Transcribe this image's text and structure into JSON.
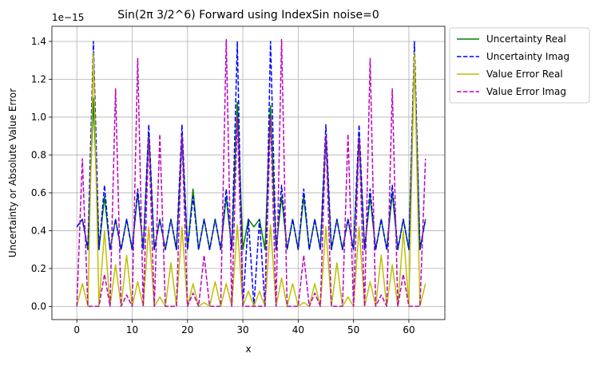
{
  "chart_data": {
    "type": "line",
    "title": "Sin(2π 3/2^6) Forward using IndexSin noise=0",
    "xlabel": "x",
    "ylabel": "Uncertainty or Absolute Value Error",
    "y_offset_label": "1e−15",
    "xlim": [
      -4.5,
      66.5
    ],
    "ylim": [
      -0.07,
      1.48
    ],
    "x_ticks": [
      0,
      10,
      20,
      30,
      40,
      50,
      60
    ],
    "x_tick_labels": [
      "0",
      "10",
      "20",
      "30",
      "40",
      "50",
      "60"
    ],
    "y_ticks": [
      0.0,
      0.2,
      0.4,
      0.6,
      0.8,
      1.0,
      1.2,
      1.4
    ],
    "y_tick_labels": [
      "0.0",
      "0.2",
      "0.4",
      "0.6",
      "0.8",
      "1.0",
      "1.2",
      "1.4"
    ],
    "grid": true,
    "legend_placement": "outside-right-top",
    "x": [
      0,
      1,
      2,
      3,
      4,
      5,
      6,
      7,
      8,
      9,
      10,
      11,
      12,
      13,
      14,
      15,
      16,
      17,
      18,
      19,
      20,
      21,
      22,
      23,
      24,
      25,
      26,
      27,
      28,
      29,
      30,
      31,
      32,
      33,
      34,
      35,
      36,
      37,
      38,
      39,
      40,
      41,
      42,
      43,
      44,
      45,
      46,
      47,
      48,
      49,
      50,
      51,
      52,
      53,
      54,
      55,
      56,
      57,
      58,
      59,
      60,
      61,
      62,
      63
    ],
    "series": [
      {
        "name": "Uncertainty Real",
        "color": "#008000",
        "dash": "solid",
        "values": [
          0.42,
          0.46,
          0.3,
          1.1,
          0.3,
          0.58,
          0.3,
          0.46,
          0.3,
          0.46,
          0.3,
          0.6,
          0.3,
          0.92,
          0.3,
          0.46,
          0.3,
          0.46,
          0.3,
          0.9,
          0.3,
          0.62,
          0.3,
          0.46,
          0.3,
          0.46,
          0.3,
          0.58,
          0.3,
          1.08,
          0.3,
          0.46,
          0.42,
          0.46,
          0.3,
          1.06,
          0.3,
          0.58,
          0.3,
          0.46,
          0.3,
          0.58,
          0.3,
          0.46,
          0.3,
          0.9,
          0.3,
          0.46,
          0.3,
          0.46,
          0.3,
          0.9,
          0.3,
          0.58,
          0.3,
          0.46,
          0.3,
          0.6,
          0.3,
          0.46,
          0.3,
          1.3,
          0.3,
          0.46
        ]
      },
      {
        "name": "Uncertainty Imag",
        "color": "#0000ff",
        "dash": "dashed",
        "values": [
          0.42,
          0.46,
          0.3,
          1.4,
          0.3,
          0.64,
          0.3,
          0.46,
          0.3,
          0.46,
          0.3,
          0.62,
          0.3,
          0.96,
          0.3,
          0.46,
          0.3,
          0.46,
          0.3,
          0.96,
          0.3,
          0.58,
          0.3,
          0.46,
          0.3,
          0.46,
          0.3,
          0.62,
          0.3,
          1.4,
          0.0,
          0.46,
          0.0,
          0.46,
          0.0,
          1.4,
          0.3,
          0.64,
          0.3,
          0.46,
          0.3,
          0.62,
          0.3,
          0.46,
          0.3,
          0.96,
          0.3,
          0.46,
          0.3,
          0.46,
          0.3,
          0.96,
          0.3,
          0.62,
          0.3,
          0.46,
          0.3,
          0.64,
          0.3,
          0.46,
          0.3,
          1.4,
          0.3,
          0.46
        ]
      },
      {
        "name": "Value Error Real",
        "color": "#bfbf00",
        "dash": "solid",
        "values": [
          0.0,
          0.12,
          0.0,
          1.34,
          0.0,
          0.4,
          0.0,
          0.22,
          0.0,
          0.27,
          0.0,
          0.13,
          0.0,
          0.42,
          0.0,
          0.05,
          0.0,
          0.23,
          0.0,
          0.42,
          0.0,
          0.12,
          0.0,
          0.02,
          0.0,
          0.13,
          0.0,
          0.12,
          0.0,
          0.43,
          0.0,
          0.08,
          0.0,
          0.08,
          0.0,
          0.43,
          0.0,
          0.15,
          0.0,
          0.12,
          0.0,
          0.02,
          0.0,
          0.12,
          0.0,
          0.42,
          0.0,
          0.23,
          0.0,
          0.05,
          0.0,
          0.42,
          0.0,
          0.13,
          0.0,
          0.27,
          0.0,
          0.22,
          0.0,
          0.4,
          0.0,
          1.34,
          0.0,
          0.12
        ]
      },
      {
        "name": "Value Error Imag",
        "color": "#bf00bf",
        "dash": "dashed",
        "values": [
          0.0,
          0.78,
          0.0,
          0.0,
          0.0,
          0.17,
          0.0,
          1.15,
          0.0,
          0.06,
          0.0,
          1.31,
          0.0,
          0.89,
          0.0,
          0.91,
          0.0,
          0.0,
          0.0,
          0.9,
          0.0,
          0.07,
          0.0,
          0.27,
          0.0,
          0.0,
          0.0,
          1.41,
          0.0,
          1.0,
          0.0,
          0.0,
          0.0,
          0.0,
          0.0,
          1.0,
          0.0,
          1.41,
          0.0,
          0.0,
          0.0,
          0.27,
          0.0,
          0.07,
          0.0,
          0.9,
          0.0,
          0.0,
          0.0,
          0.91,
          0.0,
          0.89,
          0.0,
          1.31,
          0.0,
          0.06,
          0.0,
          1.15,
          0.0,
          0.17,
          0.0,
          0.0,
          0.0,
          0.78
        ]
      }
    ]
  }
}
